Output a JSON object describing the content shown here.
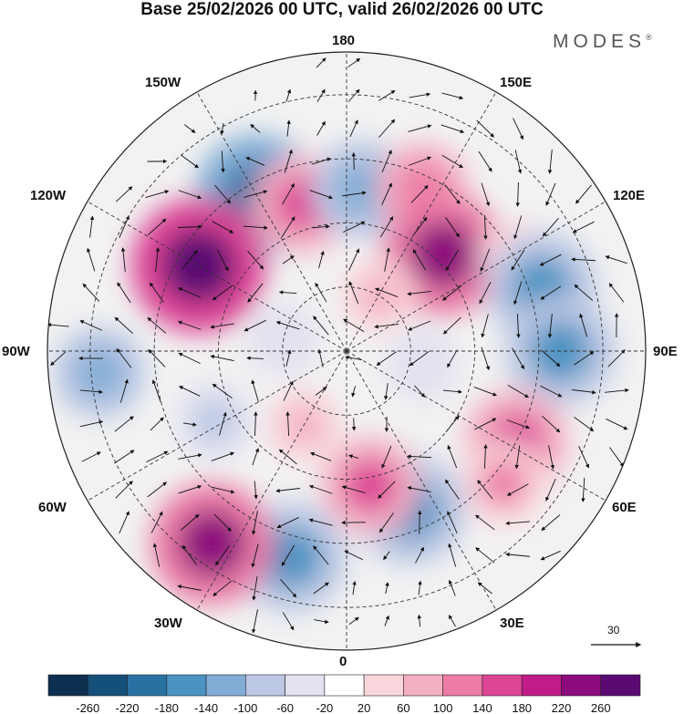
{
  "title": "Base 25/02/2026 00 UTC, valid 26/02/2026 00 UTC",
  "brand": "MODES",
  "brand_mark": "®",
  "longitude_labels": {
    "lon_180": "180",
    "lon_150w": "150W",
    "lon_150e": "150E",
    "lon_120w": "120W",
    "lon_120e": "120E",
    "lon_90w": "90W",
    "lon_90e": "90E",
    "lon_60w": "60W",
    "lon_60e": "60E",
    "lon_30w": "30W",
    "lon_30e": "30E",
    "lon_0": "0"
  },
  "reference_vector": {
    "label": "30"
  },
  "colorbar": {
    "ticks": [
      "-260",
      "-220",
      "-180",
      "-140",
      "-100",
      "-60",
      "-20",
      "20",
      "60",
      "100",
      "140",
      "180",
      "220",
      "260"
    ],
    "colors": [
      "#0d2f4f",
      "#15507a",
      "#2872a3",
      "#4b93c2",
      "#82add6",
      "#bcc8e4",
      "#e2e2f0",
      "#ffffff",
      "#f9d6dc",
      "#f4b0c3",
      "#ec7ca6",
      "#dd4595",
      "#c01b86",
      "#8c0a7c",
      "#5a0a72"
    ]
  },
  "anomalies": [
    {
      "lon": -150,
      "lat": 48,
      "value": -220
    },
    {
      "lon": -163,
      "lat": 54,
      "value": 140
    },
    {
      "lon": 175,
      "lat": 52,
      "value": -140
    },
    {
      "lon": 155,
      "lat": 48,
      "value": 120
    },
    {
      "lon": 135,
      "lat": 58,
      "value": 220
    },
    {
      "lon": 120,
      "lat": 45,
      "value": 40
    },
    {
      "lon": 108,
      "lat": 42,
      "value": -180
    },
    {
      "lon": 90,
      "lat": 40,
      "value": -180
    },
    {
      "lon": 62,
      "lat": 45,
      "value": 160
    },
    {
      "lon": 50,
      "lat": 42,
      "value": 100
    },
    {
      "lon": 22,
      "lat": 50,
      "value": -180
    },
    {
      "lon": 10,
      "lat": 58,
      "value": 140
    },
    {
      "lon": -15,
      "lat": 40,
      "value": -180
    },
    {
      "lon": -35,
      "lat": 35,
      "value": 220
    },
    {
      "lon": -62,
      "lat": 55,
      "value": -80
    },
    {
      "lon": -85,
      "lat": 32,
      "value": -120
    },
    {
      "lon": -120,
      "lat": 50,
      "value": 260
    },
    {
      "lon": -100,
      "lat": 75,
      "value": -60
    },
    {
      "lon": 80,
      "lat": 72,
      "value": -60
    },
    {
      "lon": 150,
      "lat": 75,
      "value": 60
    },
    {
      "lon": -30,
      "lat": 70,
      "value": 60
    }
  ]
}
